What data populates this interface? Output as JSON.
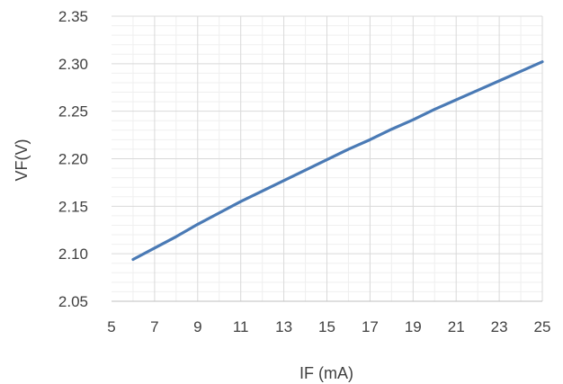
{
  "chart_data": {
    "type": "line",
    "title": "",
    "xlabel": "IF (mA)",
    "ylabel": "VF(V)",
    "xlim": [
      5,
      25
    ],
    "ylim": [
      2.05,
      2.35
    ],
    "x_ticks": [
      "5",
      "7",
      "9",
      "11",
      "13",
      "15",
      "17",
      "19",
      "21",
      "23",
      "25"
    ],
    "y_ticks": [
      "2.05",
      "2.10",
      "2.15",
      "2.20",
      "2.25",
      "2.30",
      "2.35"
    ],
    "grid": {
      "major": true,
      "minor": true
    },
    "colors": {
      "line": "#4a7ab5",
      "major_grid": "#d9d9d9",
      "minor_grid": "#efefef",
      "axis": "#bfbfbf"
    },
    "series": [
      {
        "x": [
          6,
          7,
          8,
          9,
          10,
          11,
          12,
          13,
          14,
          15,
          16,
          17,
          18,
          19,
          20,
          21,
          22,
          23,
          24,
          25
        ],
        "y": [
          2.094,
          2.106,
          2.118,
          2.131,
          2.143,
          2.155,
          2.166,
          2.177,
          2.188,
          2.199,
          2.21,
          2.22,
          2.231,
          2.241,
          2.252,
          2.262,
          2.272,
          2.282,
          2.292,
          2.302
        ]
      }
    ]
  }
}
